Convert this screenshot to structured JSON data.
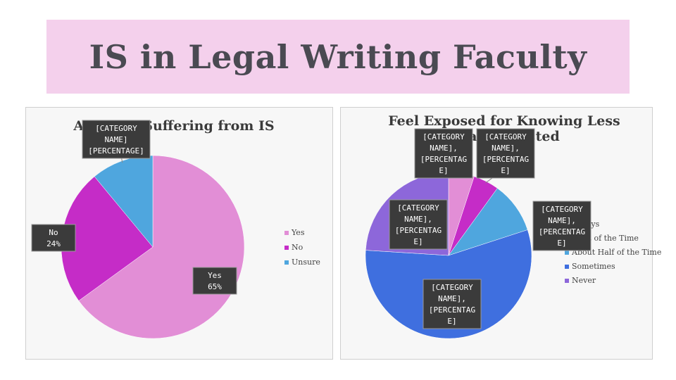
{
  "slide": {
    "title": "IS in Legal Writing Faculty"
  },
  "chart_data": [
    {
      "type": "pie",
      "title": "Admit to Suffering from IS",
      "categories": [
        "Yes",
        "No",
        "Unsure"
      ],
      "values": [
        65,
        24,
        11
      ],
      "colors": [
        "#e28ed6",
        "#c52cc7",
        "#4fa6de"
      ],
      "legend": "right",
      "data_labels": [
        [
          "Yes",
          "65%"
        ],
        [
          "No",
          "24%"
        ],
        [
          "[CATEGORY",
          "NAME]",
          "[PERCENTAGE]"
        ]
      ]
    },
    {
      "type": "pie",
      "title": "Feel Exposed for Knowing Less Than Expected",
      "title_lines": [
        "Feel Exposed for Knowing Less",
        "Than Expected"
      ],
      "categories": [
        "Always",
        "Most of the Time",
        "About Half of the Time",
        "Sometimes",
        "Never"
      ],
      "values": [
        5,
        5,
        10,
        56,
        24
      ],
      "colors": [
        "#e28ed6",
        "#c52cc7",
        "#4fa6de",
        "#3f6fdf",
        "#8d67da"
      ],
      "legend": "right",
      "data_labels": [
        [
          "[CATEGORY",
          "NAME],",
          "[PERCENTAG",
          "E]"
        ],
        [
          "[CATEGORY",
          "NAME],",
          "[PERCENTAG",
          "E]"
        ],
        [
          "[CATEGORY",
          "NAME],",
          "[PERCENTAG",
          "E]"
        ],
        [
          "[CATEGORY",
          "NAME],",
          "[PERCENTAG",
          "E]"
        ],
        [
          "[CATEGORY",
          "NAME],",
          "[PERCENTAG",
          "E]"
        ]
      ]
    }
  ]
}
